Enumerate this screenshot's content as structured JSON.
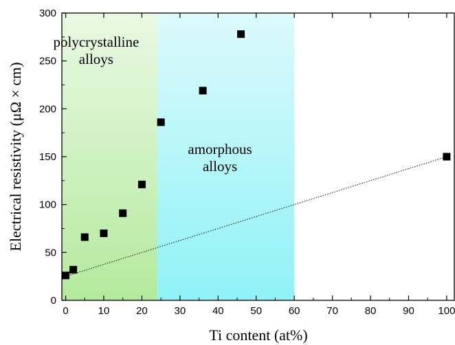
{
  "chart_data": {
    "type": "scatter",
    "title": "",
    "xlabel": "Ti content (at%)",
    "ylabel": "Electrical resistivity (μΩ × cm)",
    "xlim": [
      -1,
      102
    ],
    "ylim": [
      0,
      300
    ],
    "xticks": [
      0,
      10,
      20,
      30,
      40,
      50,
      60,
      70,
      80,
      90,
      100
    ],
    "yticks": [
      0,
      50,
      100,
      150,
      200,
      250,
      300
    ],
    "grid": false,
    "regions": [
      {
        "label": "polycrystalline alloys",
        "x_range": [
          -1,
          24
        ],
        "color": "#9be27e"
      },
      {
        "label": "amorphous alloys",
        "x_range": [
          24,
          60
        ],
        "color": "#5ee8f0"
      }
    ],
    "annotations": [
      {
        "lines": [
          "polycrystalline",
          "alloys"
        ],
        "x": 8,
        "y": 265
      },
      {
        "lines": [
          "amorphous",
          "alloys"
        ],
        "x": 40.5,
        "y": 153
      }
    ],
    "series": [
      {
        "marker": "square",
        "color": "#000000",
        "x": [
          0,
          2,
          5,
          10,
          15,
          20,
          25,
          36,
          46,
          100
        ],
        "y": [
          26,
          32,
          66,
          70,
          91,
          121,
          186,
          219,
          278,
          150
        ]
      }
    ],
    "trend_line": {
      "style": "dotted",
      "color": "#000000",
      "x": [
        0,
        100
      ],
      "y": [
        25,
        150
      ]
    }
  }
}
